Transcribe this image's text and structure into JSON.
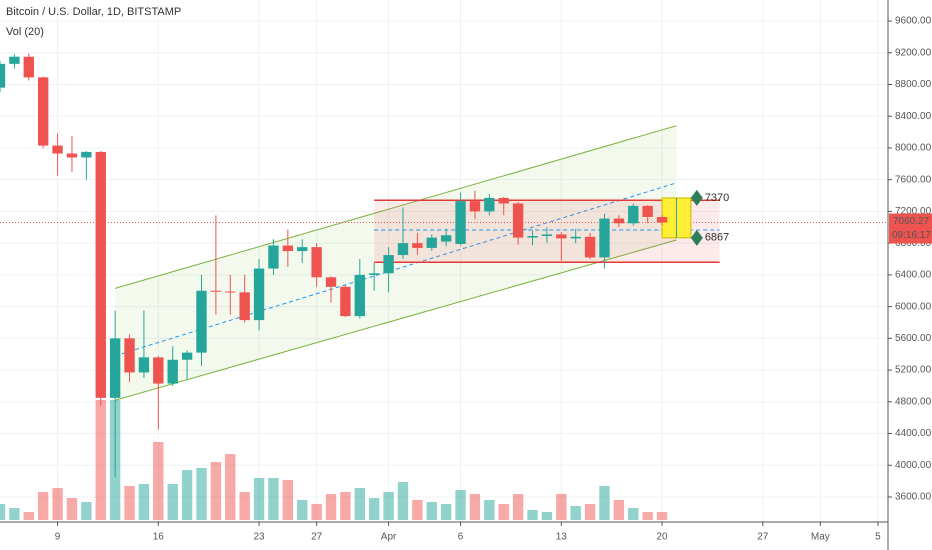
{
  "chart_data": {
    "type": "candlestick",
    "title": "Bitcoin / U.S. Dollar, 1D, BITSTAMP",
    "subtitle": "Vol (20)",
    "x": [
      0,
      1,
      2,
      3,
      4,
      5,
      6,
      7,
      8,
      9,
      10,
      11,
      12,
      13,
      14,
      15,
      16,
      17,
      18,
      19,
      20,
      21,
      22,
      23,
      24,
      25,
      26,
      27,
      28,
      29,
      30,
      31,
      32,
      33,
      34,
      35,
      36,
      37,
      38,
      39,
      40,
      41,
      42,
      43,
      44,
      45,
      46
    ],
    "open": [
      8760,
      9060,
      9150,
      8890,
      8030,
      7930,
      7880,
      7950,
      4850,
      5600,
      5170,
      5360,
      5030,
      5330,
      5420,
      6200,
      6190,
      6180,
      5830,
      6480,
      6770,
      6700,
      6750,
      6370,
      6250,
      5880,
      6400,
      6420,
      6650,
      6800,
      6740,
      6820,
      6790,
      7330,
      7200,
      7370,
      7300,
      6870,
      6890,
      6910,
      6860,
      6880,
      6620,
      7110,
      7050,
      7270,
      7130
    ],
    "high": [
      9100,
      9180,
      9190,
      8900,
      8180,
      8150,
      7960,
      7960,
      5950,
      5650,
      5950,
      5380,
      5500,
      5450,
      6400,
      7150,
      6400,
      6400,
      6600,
      6850,
      6970,
      6850,
      6800,
      6380,
      6270,
      6600,
      6550,
      6750,
      7250,
      6930,
      6910,
      6980,
      7440,
      7460,
      7420,
      7380,
      7320,
      6960,
      7000,
      6940,
      6980,
      6930,
      7170,
      7150,
      7300,
      7280,
      7160
    ],
    "low": [
      8700,
      9000,
      8850,
      8000,
      7650,
      7700,
      7600,
      4750,
      3850,
      5050,
      5100,
      4450,
      5000,
      5080,
      5250,
      5900,
      5900,
      5800,
      5700,
      6400,
      6500,
      6550,
      6250,
      6050,
      5870,
      5850,
      6200,
      6180,
      6600,
      6650,
      6700,
      6760,
      6770,
      7100,
      7150,
      7150,
      6780,
      6770,
      6800,
      6580,
      6800,
      6600,
      6480,
      7000,
      7020,
      7050,
      7020
    ],
    "close": [
      9060,
      9150,
      8890,
      8030,
      7930,
      7880,
      7950,
      4850,
      5600,
      5170,
      5360,
      5030,
      5330,
      5420,
      6200,
      6190,
      6180,
      5830,
      6480,
      6770,
      6700,
      6750,
      6370,
      6250,
      5880,
      6400,
      6420,
      6650,
      6800,
      6740,
      6870,
      6900,
      7330,
      7200,
      7370,
      7300,
      6870,
      6890,
      6910,
      6860,
      6880,
      6620,
      7110,
      7050,
      7270,
      7130,
      7060.27
    ],
    "volume": [
      16,
      12,
      8,
      28,
      32,
      22,
      18,
      120,
      120,
      34,
      36,
      78,
      36,
      50,
      52,
      58,
      66,
      28,
      42,
      42,
      40,
      20,
      16,
      26,
      28,
      32,
      22,
      28,
      38,
      20,
      18,
      16,
      30,
      26,
      20,
      16,
      26,
      10,
      8,
      26,
      14,
      16,
      34,
      20,
      12,
      8,
      8
    ],
    "volume_lim": [
      0,
      150
    ],
    "up_color": "#26a69a",
    "down_color": "#ef5350",
    "xlim": [
      0,
      61.7
    ],
    "xticks": [
      {
        "value": 4,
        "label": "9"
      },
      {
        "value": 11,
        "label": "16"
      },
      {
        "value": 18,
        "label": "23"
      },
      {
        "value": 22,
        "label": "27"
      },
      {
        "value": 27,
        "label": "Apr"
      },
      {
        "value": 32,
        "label": "6"
      },
      {
        "value": 39,
        "label": "13"
      },
      {
        "value": 46,
        "label": "20"
      },
      {
        "value": 53,
        "label": "27"
      },
      {
        "value": 57,
        "label": "May"
      },
      {
        "value": 61,
        "label": "5"
      }
    ],
    "ylim": [
      3285,
      9865
    ],
    "yticks": [
      {
        "value": 3600,
        "label": "3600.00"
      },
      {
        "value": 4000,
        "label": "4000.00"
      },
      {
        "value": 4400,
        "label": "4400.00"
      },
      {
        "value": 4800,
        "label": "4800.00"
      },
      {
        "value": 5200,
        "label": "5200.00"
      },
      {
        "value": 5600,
        "label": "5600.00"
      },
      {
        "value": 6000,
        "label": "6000.00"
      },
      {
        "value": 6400,
        "label": "6400.00"
      },
      {
        "value": 6800,
        "label": "6800.00"
      },
      {
        "value": 7200,
        "label": "7200.00"
      },
      {
        "value": 7600,
        "label": "7600.00"
      },
      {
        "value": 8000,
        "label": "8000.00"
      },
      {
        "value": 8400,
        "label": "8400.00"
      },
      {
        "value": 8800,
        "label": "8800.00"
      },
      {
        "value": 9200,
        "label": "9200.00"
      },
      {
        "value": 9600,
        "label": "9600.00"
      }
    ],
    "grid": true,
    "last_price": {
      "value": 7060.27,
      "label": "7060.27",
      "countdown": "09:16:17"
    },
    "channel": {
      "x": [
        8,
        47
      ],
      "upper": [
        6230,
        8280
      ],
      "lower": [
        4820,
        6840
      ],
      "mid": [
        5380,
        7560
      ]
    },
    "range_box": {
      "x": [
        26,
        50
      ],
      "y": [
        6560,
        7340
      ],
      "mid": 6965
    },
    "target_box": {
      "x": [
        46,
        48
      ],
      "levels": [
        7370,
        6867
      ]
    }
  }
}
